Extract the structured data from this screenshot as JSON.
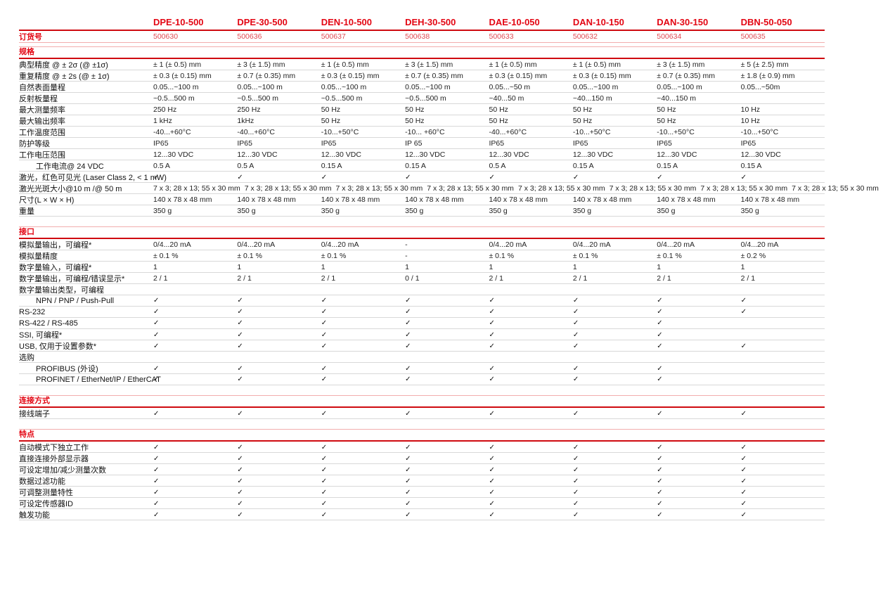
{
  "colors": {
    "accent_red": "#e30613",
    "accent_dark_red": "#cf0a10",
    "accent_soft_red": "#e04a52",
    "rule_light_red": "#f2aeae",
    "rule_gray": "#d8d8d8"
  },
  "header": {
    "models": [
      "DPE-10-500",
      "DPE-30-500",
      "DEN-10-500",
      "DEH-30-500",
      "DAE-10-050",
      "DAN-10-150",
      "DAN-30-150",
      "DBN-50-050"
    ],
    "order_row_label": "订货号",
    "order_numbers": [
      "500630",
      "500636",
      "500637",
      "500638",
      "500633",
      "500632",
      "500634",
      "500635"
    ]
  },
  "sections": [
    {
      "title": "规格",
      "rows": [
        {
          "label": "典型精度 @ ± 2σ (@ ±1σ)",
          "values": [
            "± 1 (± 0.5) mm",
            "± 3 (± 1.5) mm",
            "± 1 (± 0.5) mm",
            "± 3 (± 1.5) mm",
            "± 1 (± 0.5) mm",
            "± 1 (± 0.5) mm",
            "± 3 (± 1.5) mm",
            "± 5 (± 2.5) mm"
          ]
        },
        {
          "label": "重复精度 @ ± 2s (@ ± 1σ)",
          "values": [
            "± 0.3 (± 0.15) mm",
            "± 0.7 (± 0.35) mm",
            "± 0.3 (± 0.15) mm",
            "± 0.7 (± 0.35) mm",
            "± 0.3 (± 0.15) mm",
            "± 0.3 (± 0.15) mm",
            "± 0.7 (± 0.35) mm",
            "± 1.8 (± 0.9) mm"
          ]
        },
        {
          "label": "自然表面量程",
          "values": [
            "0.05...~100 m",
            "0.05...~100 m",
            "0.05...~100 m",
            "0.05...~100 m",
            "0.05...~50 m",
            "0.05...~100 m",
            "0.05...~100 m",
            "0.05...~50m"
          ]
        },
        {
          "label": "反射板量程",
          "values": [
            "~0.5...500 m",
            "~0.5...500 m",
            "~0.5...500 m",
            "~0.5...500 m",
            "~40...50 m",
            "~40...150 m",
            "~40...150 m",
            ""
          ]
        },
        {
          "label": "最大测量频率",
          "values": [
            "250 Hz",
            "250 Hz",
            "50 Hz",
            "50 Hz",
            "50 Hz",
            "50 Hz",
            "50 Hz",
            "10 Hz"
          ]
        },
        {
          "label": "最大输出频率",
          "values": [
            "1 kHz",
            "1kHz",
            "50 Hz",
            "50 Hz",
            "50 Hz",
            "50 Hz",
            "50 Hz",
            "10 Hz"
          ]
        },
        {
          "label": "工作温度范围",
          "values": [
            "-40...+60°C",
            "-40...+60°C",
            "-10...+50°C",
            "-10... +60°C",
            "-40...+60°C",
            "-10...+50°C",
            "-10...+50°C",
            "-10...+50°C"
          ]
        },
        {
          "label": "防护等级",
          "values": [
            "IP65",
            "IP65",
            "IP65",
            "IP 65",
            "IP65",
            "IP65",
            "IP65",
            "IP65"
          ]
        },
        {
          "label": "工作电压范围",
          "values": [
            "12...30 VDC",
            "12...30 VDC",
            "12...30 VDC",
            "12...30 VDC",
            "12...30 VDC",
            "12...30 VDC",
            "12...30 VDC",
            "12...30 VDC"
          ]
        },
        {
          "label": "工作电流@ 24 VDC",
          "indent": true,
          "values": [
            "0.5 A",
            "0.5 A",
            "0.15 A",
            "0.15 A",
            "0.5 A",
            "0.15 A",
            "0.15 A",
            "0.15 A"
          ]
        },
        {
          "label": "激光，红色可见光 (Laser Class 2, < 1 mW)",
          "values": [
            "✓",
            "✓",
            "✓",
            "✓",
            "✓",
            "✓",
            "✓",
            "✓"
          ]
        },
        {
          "label": "激光光斑大小@10 m /@ 50 m",
          "values": [
            "7 x 3; 28 x 13; 55 x 30 mm",
            "7 x 3; 28 x 13; 55 x 30 mm",
            "7 x 3; 28 x 13; 55 x 30 mm",
            "7 x 3; 28 x 13; 55 x 30 mm",
            "7 x 3; 28 x 13; 55 x 30 mm",
            "7 x 3; 28 x 13; 55 x 30 mm",
            "7 x 3; 28 x 13; 55 x 30 mm",
            "7 x 3; 28 x 13; 55 x 30 mm"
          ]
        },
        {
          "label": "尺寸(L × W × H)",
          "values": [
            "140 x 78 x 48 mm",
            "140 x 78 x 48 mm",
            "140 x 78 x 48 mm",
            "140 x 78 x 48 mm",
            "140 x 78 x 48 mm",
            "140 x 78 x 48 mm",
            "140 x 78 x 48 mm",
            "140 x 78 x 48 mm"
          ]
        },
        {
          "label": "重量",
          "values": [
            "350 g",
            "350 g",
            "350 g",
            "350 g",
            "350 g",
            "350 g",
            "350 g",
            "350 g"
          ]
        }
      ]
    },
    {
      "title": "接口",
      "rows": [
        {
          "label": "模拟量输出，可编程*",
          "values": [
            "0/4...20 mA",
            "0/4...20 mA",
            "0/4...20 mA",
            "-",
            "0/4...20 mA",
            "0/4...20 mA",
            "0/4...20 mA",
            "0/4...20 mA"
          ]
        },
        {
          "label": "模拟量精度",
          "values": [
            "± 0.1 %",
            "± 0.1 %",
            "± 0.1 %",
            "-",
            "± 0.1 %",
            "± 0.1 %",
            "± 0.1 %",
            "± 0.2 %"
          ]
        },
        {
          "label": "数字量输入，可编程*",
          "values": [
            "1",
            "1",
            "1",
            "1",
            "1",
            "1",
            "1",
            "1"
          ]
        },
        {
          "label": "数字量输出，可编程/错误显示*",
          "values": [
            "2 / 1",
            "2 / 1",
            "2 / 1",
            "0 / 1",
            "2 / 1",
            "2 / 1",
            "2 / 1",
            "2 / 1"
          ]
        },
        {
          "label": "数字量输出类型，可编程",
          "group": true,
          "values": [
            "",
            "",
            "",
            "",
            "",
            "",
            "",
            ""
          ]
        },
        {
          "label": "NPN / PNP / Push-Pull",
          "indent": true,
          "values": [
            "✓",
            "✓",
            "✓",
            "✓",
            "✓",
            "✓",
            "✓",
            "✓"
          ]
        },
        {
          "label": "RS-232",
          "values": [
            "✓",
            "✓",
            "✓",
            "✓",
            "✓",
            "✓",
            "✓",
            "✓"
          ]
        },
        {
          "label": "RS-422 / RS-485",
          "values": [
            "✓",
            "✓",
            "✓",
            "✓",
            "✓",
            "✓",
            "✓",
            ""
          ]
        },
        {
          "label": "SSI, 可编程*",
          "values": [
            "✓",
            "✓",
            "✓",
            "✓",
            "✓",
            "✓",
            "✓",
            ""
          ]
        },
        {
          "label": "USB, 仅用于设置参数*",
          "values": [
            "✓",
            "✓",
            "✓",
            "✓",
            "✓",
            "✓",
            "✓",
            "✓"
          ]
        },
        {
          "label": "选购",
          "group": true,
          "values": [
            "",
            "",
            "",
            "",
            "",
            "",
            "",
            ""
          ]
        },
        {
          "label": "PROFIBUS (外设)",
          "indent": true,
          "values": [
            "✓",
            "✓",
            "✓",
            "✓",
            "✓",
            "✓",
            "✓",
            ""
          ]
        },
        {
          "label": "PROFINET / EtherNet/IP / EtherCAT",
          "indent": true,
          "values": [
            "✓",
            "✓",
            "✓",
            "✓",
            "✓",
            "✓",
            "✓",
            ""
          ]
        }
      ]
    },
    {
      "title": "连接方式",
      "rows": [
        {
          "label": "接线端子",
          "values": [
            "✓",
            "✓",
            "✓",
            "✓",
            "✓",
            "✓",
            "✓",
            "✓"
          ]
        }
      ]
    },
    {
      "title": "特点",
      "rows": [
        {
          "label": "自动模式下独立工作",
          "values": [
            "✓",
            "✓",
            "✓",
            "✓",
            "✓",
            "✓",
            "✓",
            "✓"
          ]
        },
        {
          "label": "直接连接外部显示器",
          "values": [
            "✓",
            "✓",
            "✓",
            "✓",
            "✓",
            "✓",
            "✓",
            "✓"
          ]
        },
        {
          "label": "可设定增加/减少测量次数",
          "values": [
            "✓",
            "✓",
            "✓",
            "✓",
            "✓",
            "✓",
            "✓",
            "✓"
          ]
        },
        {
          "label": "数据过滤功能",
          "values": [
            "✓",
            "✓",
            "✓",
            "✓",
            "✓",
            "✓",
            "✓",
            "✓"
          ]
        },
        {
          "label": "可调整测量特性",
          "values": [
            "✓",
            "✓",
            "✓",
            "✓",
            "✓",
            "✓",
            "✓",
            "✓"
          ]
        },
        {
          "label": "可设定传感器ID",
          "values": [
            "✓",
            "✓",
            "✓",
            "✓",
            "✓",
            "✓",
            "✓",
            "✓"
          ]
        },
        {
          "label": "触发功能",
          "values": [
            "✓",
            "✓",
            "✓",
            "✓",
            "✓",
            "✓",
            "✓",
            "✓"
          ]
        }
      ]
    }
  ]
}
